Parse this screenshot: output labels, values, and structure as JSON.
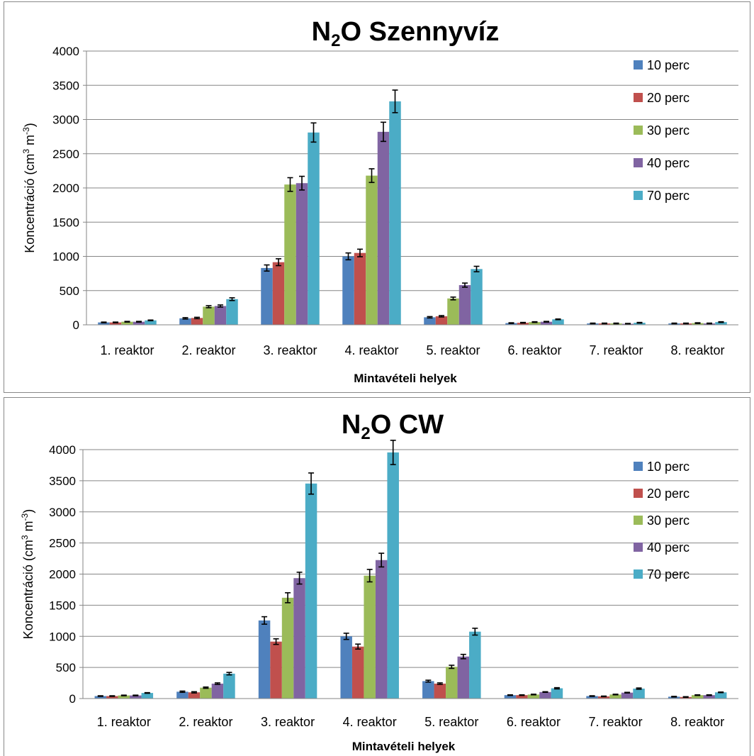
{
  "chart_data": [
    {
      "type": "bar",
      "title_main": "N",
      "title_sub": "2",
      "title_rest": "O Szennyvíz",
      "xlabel": "Mintavételi helyek",
      "ylabel_pre": "Koncentráció (cm",
      "ylabel_sup1": "3",
      "ylabel_mid": " m",
      "ylabel_sup2": "-3",
      "ylabel_post": ")",
      "ylim": [
        0,
        4000
      ],
      "yticks": [
        "0",
        "500",
        "1000",
        "1500",
        "2000",
        "2500",
        "3000",
        "3500",
        "4000"
      ],
      "categories": [
        "1. reaktor",
        "2. reaktor",
        "3. reaktor",
        "4. reaktor",
        "5. reaktor",
        "6. reaktor",
        "7. reaktor",
        "8. reaktor"
      ],
      "legend_position": "top-right",
      "series": [
        {
          "name": "10 perc",
          "color": "#4F81BD",
          "values": [
            35,
            95,
            830,
            1000,
            110,
            25,
            20,
            20
          ],
          "errors": [
            5,
            10,
            45,
            50,
            10,
            5,
            5,
            5
          ]
        },
        {
          "name": "20 perc",
          "color": "#C0504D",
          "values": [
            35,
            100,
            915,
            1050,
            125,
            30,
            20,
            20
          ],
          "errors": [
            5,
            10,
            50,
            55,
            10,
            5,
            5,
            5
          ]
        },
        {
          "name": "30 perc",
          "color": "#9BBB59",
          "values": [
            45,
            265,
            2050,
            2180,
            385,
            40,
            20,
            25
          ],
          "errors": [
            5,
            15,
            100,
            100,
            20,
            5,
            5,
            5
          ]
        },
        {
          "name": "40 perc",
          "color": "#8064A2",
          "values": [
            45,
            275,
            2070,
            2820,
            580,
            45,
            15,
            20
          ],
          "errors": [
            5,
            15,
            100,
            140,
            30,
            5,
            5,
            5
          ]
        },
        {
          "name": "70 perc",
          "color": "#4BACC6",
          "values": [
            65,
            375,
            2810,
            3265,
            815,
            80,
            30,
            40
          ],
          "errors": [
            5,
            20,
            140,
            165,
            40,
            5,
            5,
            5
          ]
        }
      ]
    },
    {
      "type": "bar",
      "title_main": "N",
      "title_sub": "2",
      "title_rest": "O CW",
      "xlabel": "Mintavételi helyek",
      "ylabel_pre": "Koncentráció (cm",
      "ylabel_sup1": "3",
      "ylabel_mid": " m",
      "ylabel_sup2": "-3",
      "ylabel_post": ")",
      "ylim": [
        0,
        4000
      ],
      "yticks": [
        "0",
        "500",
        "1000",
        "1500",
        "2000",
        "2500",
        "3000",
        "3500",
        "4000"
      ],
      "categories": [
        "1. reaktor",
        "2. reaktor",
        "3. reaktor",
        "4. reaktor",
        "5. reaktor",
        "6. reaktor",
        "7. reaktor",
        "8. reaktor"
      ],
      "legend_position": "top-right",
      "series": [
        {
          "name": "10 perc",
          "color": "#4F81BD",
          "values": [
            40,
            110,
            1255,
            1000,
            280,
            55,
            40,
            30
          ],
          "errors": [
            5,
            10,
            60,
            50,
            15,
            5,
            5,
            5
          ]
        },
        {
          "name": "20 perc",
          "color": "#C0504D",
          "values": [
            40,
            100,
            915,
            835,
            240,
            55,
            35,
            25
          ],
          "errors": [
            5,
            10,
            45,
            40,
            12,
            5,
            5,
            5
          ]
        },
        {
          "name": "30 perc",
          "color": "#9BBB59",
          "values": [
            50,
            175,
            1620,
            1975,
            510,
            65,
            65,
            55
          ],
          "errors": [
            5,
            10,
            80,
            100,
            25,
            5,
            5,
            5
          ]
        },
        {
          "name": "40 perc",
          "color": "#8064A2",
          "values": [
            50,
            240,
            1935,
            2225,
            675,
            105,
            95,
            55
          ],
          "errors": [
            5,
            12,
            95,
            110,
            35,
            5,
            5,
            5
          ]
        },
        {
          "name": "70 perc",
          "color": "#4BACC6",
          "values": [
            90,
            400,
            3455,
            3955,
            1075,
            165,
            160,
            100
          ],
          "errors": [
            5,
            20,
            170,
            195,
            55,
            10,
            10,
            5
          ]
        }
      ]
    }
  ]
}
